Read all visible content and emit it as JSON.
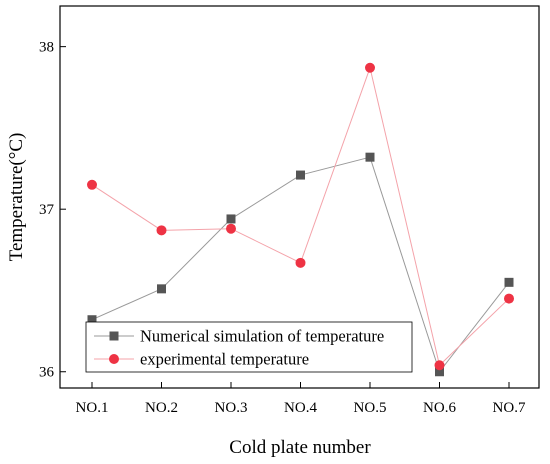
{
  "chart_data": {
    "type": "line",
    "xlabel": "Cold plate number",
    "ylabel": "Temperature(°C)",
    "categories": [
      "NO.1",
      "NO.2",
      "NO.3",
      "NO.4",
      "NO.5",
      "NO.6",
      "NO.7"
    ],
    "ylim": [
      35.9,
      38.25
    ],
    "yticks": [
      36,
      37,
      38
    ],
    "grid": false,
    "legend_position": "bottom-left",
    "series": [
      {
        "name": "Numerical simulation of temperature",
        "marker": "square",
        "color": "#555555",
        "line_color": "#999999",
        "values": [
          36.32,
          36.51,
          36.94,
          37.21,
          37.32,
          36.0,
          36.55
        ]
      },
      {
        "name": "experimental temperature",
        "marker": "circle",
        "color": "#ee3344",
        "line_color": "#f4a3aa",
        "values": [
          37.15,
          36.87,
          36.88,
          36.67,
          37.87,
          36.04,
          36.45
        ]
      }
    ]
  }
}
